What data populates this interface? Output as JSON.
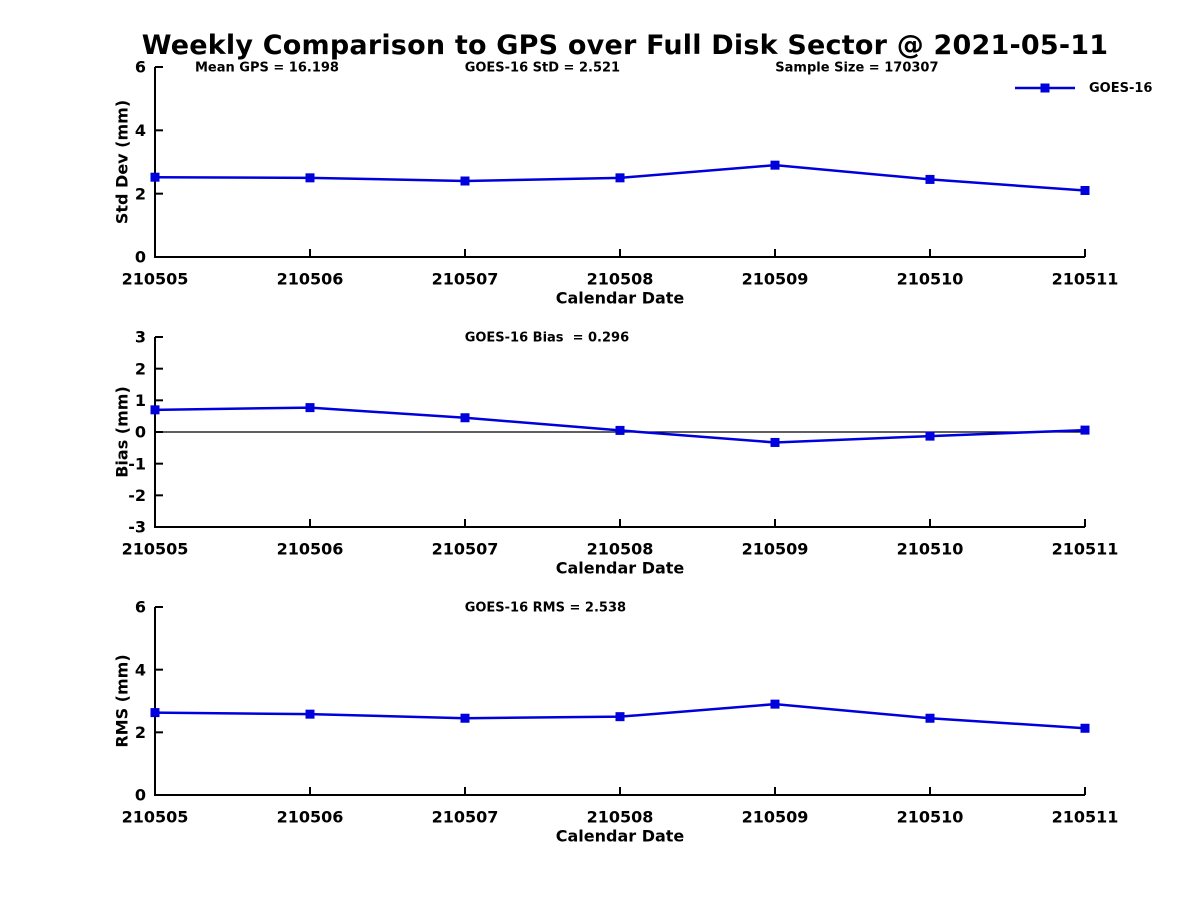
{
  "page": {
    "title": "Weekly Comparison to GPS over Full Disk Sector @ 2021-05-11"
  },
  "legend": {
    "label": "GOES-16",
    "position": "top-right"
  },
  "colors": {
    "series": "#0000DD",
    "axis": "#000000",
    "text": "#000000",
    "background": "#ffffff"
  },
  "chart_data": [
    {
      "type": "line",
      "panel": "std-dev",
      "ylabel": "Std Dev (mm)",
      "xlabel": "Calendar Date",
      "ylim": [
        0,
        6
      ],
      "yticks": [
        0,
        2,
        4,
        6
      ],
      "grid": false,
      "zero_line": false,
      "categories": [
        "210505",
        "210506",
        "210507",
        "210508",
        "210509",
        "210510",
        "210511"
      ],
      "series": [
        {
          "name": "GOES-16",
          "values": [
            2.52,
            2.5,
            2.4,
            2.5,
            2.9,
            2.45,
            2.1
          ]
        }
      ],
      "annotations": [
        {
          "text": "Mean GPS = 16.198",
          "xfrac": 0.043
        },
        {
          "text": "GOES-16 StD = 2.521",
          "xfrac": 0.333
        },
        {
          "text": "Sample Size = 170307",
          "xfrac": 0.667
        }
      ]
    },
    {
      "type": "line",
      "panel": "bias",
      "ylabel": "Bias (mm)",
      "xlabel": "Calendar Date",
      "ylim": [
        -3,
        3
      ],
      "yticks": [
        3,
        2,
        1,
        0,
        -1,
        -2,
        -3
      ],
      "grid": false,
      "zero_line": true,
      "categories": [
        "210505",
        "210506",
        "210507",
        "210508",
        "210509",
        "210510",
        "210511"
      ],
      "series": [
        {
          "name": "GOES-16",
          "values": [
            0.7,
            0.77,
            0.45,
            0.05,
            -0.33,
            -0.13,
            0.06
          ]
        }
      ],
      "annotations": [
        {
          "text": "GOES-16 Bias  = 0.296",
          "xfrac": 0.333
        }
      ]
    },
    {
      "type": "line",
      "panel": "rms",
      "ylabel": "RMS (mm)",
      "xlabel": "Calendar Date",
      "ylim": [
        0,
        6
      ],
      "yticks": [
        0,
        2,
        4,
        6
      ],
      "grid": false,
      "zero_line": false,
      "categories": [
        "210505",
        "210506",
        "210507",
        "210508",
        "210509",
        "210510",
        "210511"
      ],
      "series": [
        {
          "name": "GOES-16",
          "values": [
            2.63,
            2.58,
            2.45,
            2.5,
            2.9,
            2.45,
            2.13
          ]
        }
      ],
      "annotations": [
        {
          "text": "GOES-16 RMS = 2.538",
          "xfrac": 0.333
        }
      ]
    }
  ]
}
